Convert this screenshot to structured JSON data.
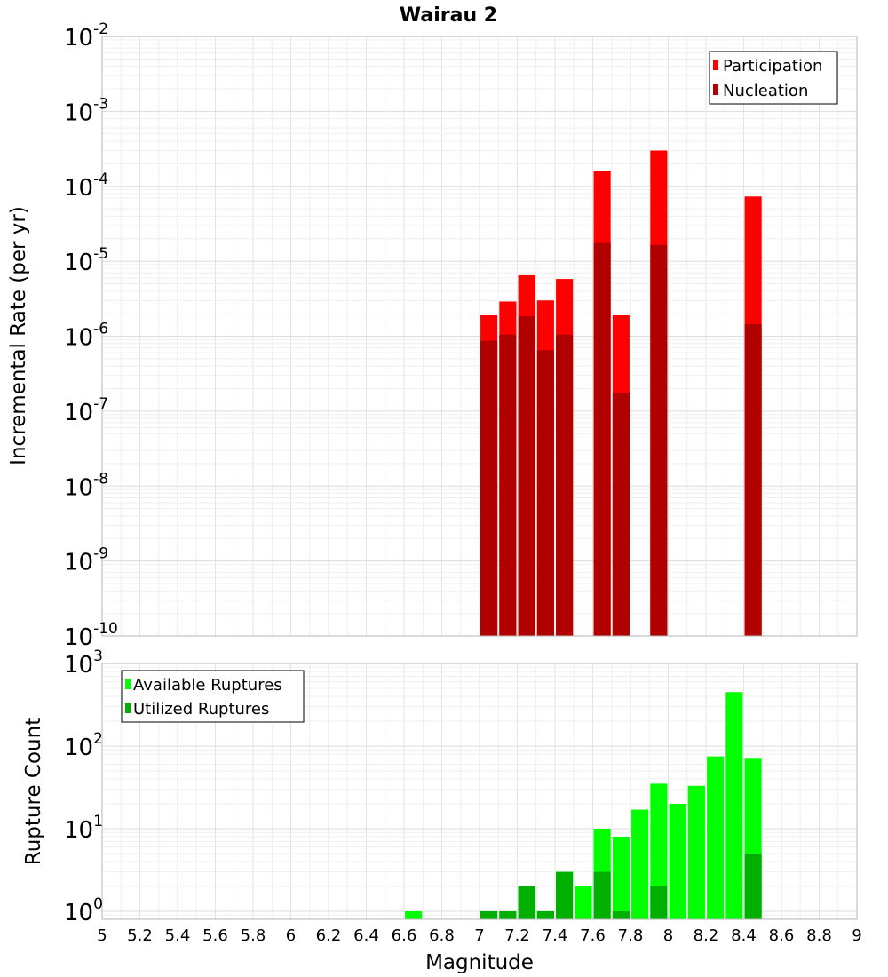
{
  "chart_data": [
    {
      "type": "bar",
      "title": "Wairau 2",
      "xlabel": "",
      "ylabel": "Incremental Rate (per yr)",
      "xlim": [
        5,
        9
      ],
      "ylim": [
        1e-10,
        0.01
      ],
      "yscale": "log",
      "grid": true,
      "legend_position": "top-right",
      "bar_width": 0.09,
      "yticks": [
        {
          "value": 1e-10,
          "base": "10",
          "exp": "-10"
        },
        {
          "value": 1e-09,
          "base": "10",
          "exp": "-9"
        },
        {
          "value": 1e-08,
          "base": "10",
          "exp": "-8"
        },
        {
          "value": 1e-07,
          "base": "10",
          "exp": "-7"
        },
        {
          "value": 1e-06,
          "base": "10",
          "exp": "-6"
        },
        {
          "value": 1e-05,
          "base": "10",
          "exp": "-5"
        },
        {
          "value": 0.0001,
          "base": "10",
          "exp": "-4"
        },
        {
          "value": 0.001,
          "base": "10",
          "exp": "-3"
        },
        {
          "value": 0.01,
          "base": "10",
          "exp": "-2"
        }
      ],
      "series": [
        {
          "name": "Participation",
          "color": "#ff0000",
          "points": [
            {
              "x": 7.05,
              "y": 1.9e-06
            },
            {
              "x": 7.15,
              "y": 2.9e-06
            },
            {
              "x": 7.25,
              "y": 6.5e-06
            },
            {
              "x": 7.35,
              "y": 3e-06
            },
            {
              "x": 7.45,
              "y": 5.8e-06
            },
            {
              "x": 7.65,
              "y": 0.00016
            },
            {
              "x": 7.75,
              "y": 1.9e-06
            },
            {
              "x": 7.95,
              "y": 0.0003
            },
            {
              "x": 8.45,
              "y": 7.3e-05
            }
          ]
        },
        {
          "name": "Nucleation",
          "color": "#b00000",
          "points": [
            {
              "x": 7.05,
              "y": 8.7e-07
            },
            {
              "x": 7.15,
              "y": 1.05e-06
            },
            {
              "x": 7.25,
              "y": 1.85e-06
            },
            {
              "x": 7.35,
              "y": 6.5e-07
            },
            {
              "x": 7.45,
              "y": 1.05e-06
            },
            {
              "x": 7.65,
              "y": 1.75e-05
            },
            {
              "x": 7.75,
              "y": 1.75e-07
            },
            {
              "x": 7.95,
              "y": 1.65e-05
            },
            {
              "x": 8.45,
              "y": 1.45e-06
            }
          ]
        }
      ]
    },
    {
      "type": "bar",
      "title": "",
      "xlabel": "Magnitude",
      "ylabel": "Rupture Count",
      "xlim": [
        5,
        9
      ],
      "ylim": [
        0.8,
        1000
      ],
      "yscale": "log",
      "grid": true,
      "legend_position": "top-left",
      "bar_width": 0.09,
      "xticks": [
        "5",
        "5.2",
        "5.4",
        "5.6",
        "5.8",
        "6",
        "6.2",
        "6.4",
        "6.6",
        "6.8",
        "7",
        "7.2",
        "7.4",
        "7.6",
        "7.8",
        "8",
        "8.2",
        "8.4",
        "8.6",
        "8.8",
        "9"
      ],
      "yticks": [
        {
          "value": 1,
          "base": "10",
          "exp": "0"
        },
        {
          "value": 10,
          "base": "10",
          "exp": "1"
        },
        {
          "value": 100,
          "base": "10",
          "exp": "2"
        },
        {
          "value": 1000,
          "base": "10",
          "exp": "3"
        }
      ],
      "series": [
        {
          "name": "Available Ruptures",
          "color": "#00ff00",
          "points": [
            {
              "x": 6.65,
              "y": 1
            },
            {
              "x": 7.05,
              "y": 1
            },
            {
              "x": 7.15,
              "y": 1
            },
            {
              "x": 7.25,
              "y": 2
            },
            {
              "x": 7.35,
              "y": 1
            },
            {
              "x": 7.45,
              "y": 3
            },
            {
              "x": 7.55,
              "y": 2
            },
            {
              "x": 7.65,
              "y": 10
            },
            {
              "x": 7.75,
              "y": 8
            },
            {
              "x": 7.85,
              "y": 17
            },
            {
              "x": 7.95,
              "y": 35
            },
            {
              "x": 8.05,
              "y": 20
            },
            {
              "x": 8.15,
              "y": 33
            },
            {
              "x": 8.25,
              "y": 75
            },
            {
              "x": 8.35,
              "y": 450
            },
            {
              "x": 8.45,
              "y": 72
            }
          ]
        },
        {
          "name": "Utilized Ruptures",
          "color": "#00b000",
          "points": [
            {
              "x": 7.05,
              "y": 1
            },
            {
              "x": 7.15,
              "y": 1
            },
            {
              "x": 7.25,
              "y": 2
            },
            {
              "x": 7.35,
              "y": 1
            },
            {
              "x": 7.45,
              "y": 3
            },
            {
              "x": 7.65,
              "y": 3
            },
            {
              "x": 7.75,
              "y": 1
            },
            {
              "x": 7.95,
              "y": 2
            },
            {
              "x": 8.45,
              "y": 5
            }
          ]
        }
      ]
    }
  ]
}
